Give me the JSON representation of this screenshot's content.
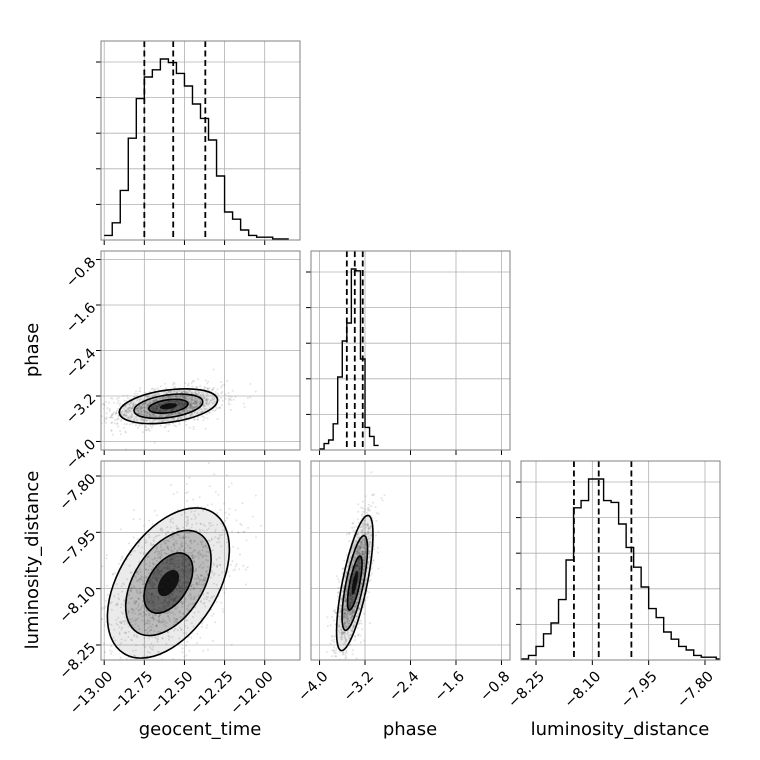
{
  "chart_data": {
    "type": "corner",
    "parameters": [
      {
        "name": "geocent_time",
        "label": "geocent_time",
        "range": [
          -13.02,
          -11.78
        ],
        "ticks": [
          "-13.00",
          "-12.75",
          "-12.50",
          "-12.25",
          "-12.00"
        ],
        "tick_values": [
          -13.0,
          -12.75,
          -12.5,
          -12.25,
          -12.0
        ],
        "quantiles": [
          -12.75,
          -12.57,
          -12.37
        ],
        "center": -12.6
      },
      {
        "name": "phase",
        "label": "phase",
        "range": [
          -4.15,
          -0.65
        ],
        "ticks": [
          "-4.0",
          "-3.2",
          "-2.4",
          "-1.6",
          "-0.8"
        ],
        "tick_values": [
          -4.0,
          -3.2,
          -2.4,
          -1.6,
          -0.8
        ],
        "quantiles": [
          -3.52,
          -3.38,
          -3.24
        ],
        "center": -3.38
      },
      {
        "name": "luminosity_distance",
        "label": "luminosity_distance",
        "range": [
          -8.29,
          -7.76
        ],
        "ticks": [
          "-8.25",
          "-8.10",
          "-7.95",
          "-7.80"
        ],
        "tick_values": [
          -8.25,
          -8.1,
          -7.95,
          -7.8
        ],
        "quantiles": [
          -8.149,
          -8.083,
          -7.996
        ],
        "center": -8.085
      }
    ],
    "diagonal_histograms": [
      {
        "param": "geocent_time",
        "bin_edges": [
          -13.0,
          -12.95,
          -12.9,
          -12.85,
          -12.8,
          -12.75,
          -12.7,
          -12.65,
          -12.6,
          -12.55,
          -12.5,
          -12.45,
          -12.4,
          -12.35,
          -12.3,
          -12.25,
          -12.2,
          -12.15,
          -12.1,
          -12.05,
          -12.0,
          -11.95,
          -11.9,
          -11.85
        ],
        "counts": [
          2,
          9,
          27,
          56,
          78,
          90,
          94,
          100,
          98,
          92,
          85,
          75,
          67,
          55,
          35,
          15,
          11,
          5,
          2,
          1,
          1,
          0,
          0
        ]
      },
      {
        "param": "phase",
        "bin_edges": [
          -4.0,
          -3.92,
          -3.84,
          -3.76,
          -3.68,
          -3.6,
          -3.52,
          -3.44,
          -3.36,
          -3.28,
          -3.2,
          -3.12,
          -3.04,
          -2.96
        ],
        "counts": [
          0,
          3,
          5,
          14,
          40,
          60,
          70,
          100,
          99,
          50,
          12,
          7,
          2
        ]
      },
      {
        "param": "luminosity_distance",
        "bin_edges": [
          -8.29,
          -8.27,
          -8.25,
          -8.23,
          -8.21,
          -8.19,
          -8.17,
          -8.15,
          -8.13,
          -8.11,
          -8.09,
          -8.07,
          -8.05,
          -8.03,
          -8.01,
          -7.99,
          -7.97,
          -7.95,
          -7.93,
          -7.91,
          -7.89,
          -7.87,
          -7.85,
          -7.83,
          -7.81,
          -7.79,
          -7.77,
          -7.76
        ],
        "counts": [
          0,
          2,
          7,
          14,
          20,
          33,
          55,
          84,
          88,
          100,
          100,
          88,
          87,
          75,
          62,
          51,
          40,
          28,
          23,
          15,
          11,
          7,
          5,
          2,
          1,
          1,
          0
        ]
      }
    ],
    "contour_panels": [
      {
        "x": "geocent_time",
        "y": "phase"
      },
      {
        "x": "geocent_time",
        "y": "luminosity_distance"
      },
      {
        "x": "phase",
        "y": "luminosity_distance"
      }
    ],
    "xlabels": [
      "geocent_time",
      "phase",
      "luminosity_distance"
    ],
    "ylabels": [
      "phase",
      "luminosity_distance"
    ],
    "grid": true,
    "colors": {
      "line": "#000000",
      "grid": "#b0b0b0",
      "scatter": "#7f7f7f",
      "fill": "#000000",
      "frame": "#808080"
    }
  }
}
